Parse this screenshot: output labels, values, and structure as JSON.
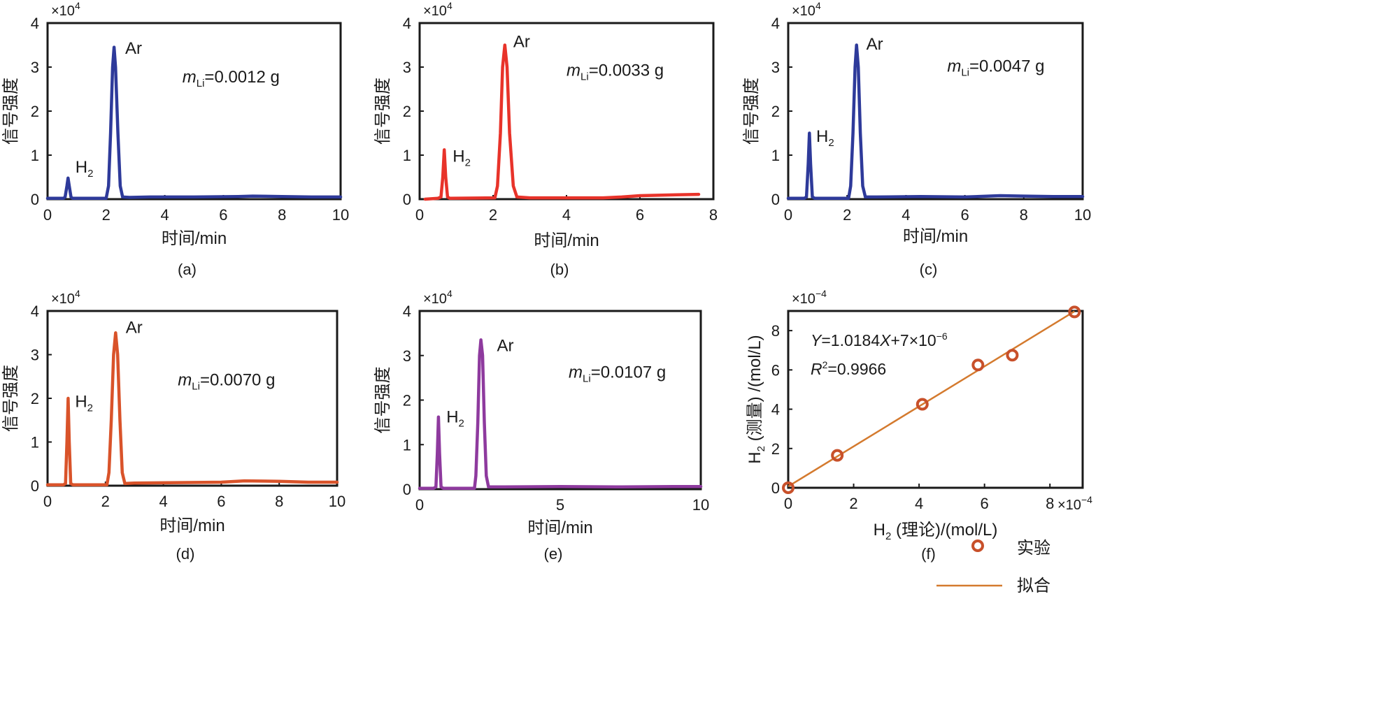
{
  "chart_data": [
    {
      "panel": "a",
      "type": "line",
      "caption": "(a)",
      "xlabel": "时间/min",
      "ylabel": "信号强度",
      "y_multiplier_base": "×10",
      "y_multiplier_exp": "4",
      "xlim": [
        0,
        10
      ],
      "ylim": [
        0,
        4
      ],
      "xticks": [
        0,
        2,
        4,
        6,
        8,
        10
      ],
      "yticks": [
        0,
        1,
        2,
        3,
        4
      ],
      "color": "#2e3a9a",
      "series": [
        {
          "name": "signal",
          "points": [
            [
              0,
              0.02
            ],
            [
              0.55,
              0.02
            ],
            [
              0.6,
              0.05
            ],
            [
              0.66,
              0.3
            ],
            [
              0.7,
              0.48
            ],
            [
              0.74,
              0.3
            ],
            [
              0.8,
              0.05
            ],
            [
              0.85,
              0.02
            ],
            [
              2.0,
              0.02
            ],
            [
              2.08,
              0.3
            ],
            [
              2.15,
              1.5
            ],
            [
              2.22,
              3.0
            ],
            [
              2.27,
              3.45
            ],
            [
              2.32,
              3.0
            ],
            [
              2.4,
              1.5
            ],
            [
              2.48,
              0.3
            ],
            [
              2.56,
              0.05
            ],
            [
              2.8,
              0.04
            ],
            [
              3.5,
              0.05
            ],
            [
              5.0,
              0.05
            ],
            [
              6.5,
              0.06
            ],
            [
              7.0,
              0.07
            ],
            [
              8.0,
              0.06
            ],
            [
              9.0,
              0.05
            ],
            [
              10,
              0.05
            ]
          ]
        }
      ],
      "annotations": [
        {
          "text": "Ar",
          "x": 2.65,
          "y": 3.3
        },
        {
          "text": "H",
          "sub": "2",
          "x": 0.95,
          "y": 0.6
        }
      ],
      "mass_label": {
        "main": "m",
        "sub": "Li",
        "value": "=0.0012 g",
        "x": 4.6,
        "y": 2.65
      }
    },
    {
      "panel": "b",
      "type": "line",
      "caption": "(b)",
      "xlabel": "时间/min",
      "ylabel": "信号强度",
      "y_multiplier_base": "×10",
      "y_multiplier_exp": "4",
      "xlim": [
        0,
        8
      ],
      "ylim": [
        0,
        4
      ],
      "xticks": [
        0,
        2,
        4,
        6,
        8
      ],
      "yticks": [
        0,
        1,
        2,
        3,
        4
      ],
      "color": "#e8332a",
      "series": [
        {
          "name": "signal",
          "points": [
            [
              0.15,
              0.0
            ],
            [
              0.5,
              0.02
            ],
            [
              0.58,
              0.05
            ],
            [
              0.63,
              0.5
            ],
            [
              0.67,
              1.12
            ],
            [
              0.71,
              0.5
            ],
            [
              0.76,
              0.05
            ],
            [
              0.82,
              0.02
            ],
            [
              2.05,
              0.03
            ],
            [
              2.12,
              0.3
            ],
            [
              2.2,
              1.5
            ],
            [
              2.26,
              3.0
            ],
            [
              2.32,
              3.5
            ],
            [
              2.38,
              3.0
            ],
            [
              2.45,
              1.5
            ],
            [
              2.55,
              0.3
            ],
            [
              2.65,
              0.05
            ],
            [
              3.0,
              0.03
            ],
            [
              4.0,
              0.03
            ],
            [
              5.0,
              0.03
            ],
            [
              5.5,
              0.05
            ],
            [
              6.0,
              0.08
            ],
            [
              7.0,
              0.1
            ],
            [
              7.6,
              0.11
            ]
          ]
        }
      ],
      "annotations": [
        {
          "text": "Ar",
          "x": 2.55,
          "y": 3.45
        },
        {
          "text": "H",
          "sub": "2",
          "x": 0.9,
          "y": 0.85
        }
      ],
      "mass_label": {
        "main": "m",
        "sub": "Li",
        "value": "=0.0033 g",
        "x": 4.0,
        "y": 2.8
      }
    },
    {
      "panel": "c",
      "type": "line",
      "caption": "(c)",
      "xlabel": "时间/min",
      "ylabel": "信号强度",
      "y_multiplier_base": "×10",
      "y_multiplier_exp": "4",
      "xlim": [
        0,
        10
      ],
      "ylim": [
        0,
        4
      ],
      "xticks": [
        0,
        2,
        4,
        6,
        8,
        10
      ],
      "yticks": [
        0,
        1,
        2,
        3,
        4
      ],
      "color": "#2e3a9a",
      "series": [
        {
          "name": "signal",
          "points": [
            [
              0,
              0.02
            ],
            [
              0.55,
              0.02
            ],
            [
              0.62,
              0.05
            ],
            [
              0.68,
              0.8
            ],
            [
              0.72,
              1.5
            ],
            [
              0.76,
              0.8
            ],
            [
              0.82,
              0.05
            ],
            [
              0.9,
              0.02
            ],
            [
              2.05,
              0.02
            ],
            [
              2.12,
              0.3
            ],
            [
              2.2,
              1.5
            ],
            [
              2.27,
              3.0
            ],
            [
              2.32,
              3.5
            ],
            [
              2.38,
              3.0
            ],
            [
              2.45,
              1.5
            ],
            [
              2.53,
              0.3
            ],
            [
              2.62,
              0.05
            ],
            [
              3.0,
              0.05
            ],
            [
              4.5,
              0.06
            ],
            [
              6.0,
              0.05
            ],
            [
              7.2,
              0.08
            ],
            [
              8.0,
              0.07
            ],
            [
              9.0,
              0.06
            ],
            [
              10,
              0.06
            ]
          ]
        }
      ],
      "annotations": [
        {
          "text": "Ar",
          "x": 2.65,
          "y": 3.4
        },
        {
          "text": "H",
          "sub": "2",
          "x": 0.95,
          "y": 1.3
        }
      ],
      "mass_label": {
        "main": "m",
        "sub": "Li",
        "value": "=0.0047 g",
        "x": 5.4,
        "y": 2.9
      }
    },
    {
      "panel": "d",
      "type": "line",
      "caption": "(d)",
      "xlabel": "时间/min",
      "ylabel": "信号强度",
      "y_multiplier_base": "×10",
      "y_multiplier_exp": "4",
      "xlim": [
        0,
        10
      ],
      "ylim": [
        0,
        4
      ],
      "xticks": [
        0,
        2,
        4,
        6,
        8,
        10
      ],
      "yticks": [
        0,
        1,
        2,
        3,
        4
      ],
      "color": "#d9532a",
      "series": [
        {
          "name": "signal",
          "points": [
            [
              0,
              0.02
            ],
            [
              0.55,
              0.02
            ],
            [
              0.62,
              0.05
            ],
            [
              0.67,
              1.0
            ],
            [
              0.71,
              2.0
            ],
            [
              0.75,
              1.0
            ],
            [
              0.8,
              0.05
            ],
            [
              0.88,
              0.02
            ],
            [
              2.05,
              0.02
            ],
            [
              2.12,
              0.3
            ],
            [
              2.2,
              1.5
            ],
            [
              2.28,
              3.0
            ],
            [
              2.35,
              3.5
            ],
            [
              2.42,
              3.0
            ],
            [
              2.5,
              1.5
            ],
            [
              2.58,
              0.3
            ],
            [
              2.67,
              0.05
            ],
            [
              3.0,
              0.06
            ],
            [
              4.5,
              0.07
            ],
            [
              6.0,
              0.08
            ],
            [
              6.8,
              0.11
            ],
            [
              8.0,
              0.1
            ],
            [
              9.0,
              0.08
            ],
            [
              10,
              0.08
            ]
          ]
        }
      ],
      "annotations": [
        {
          "text": "Ar",
          "x": 2.7,
          "y": 3.5
        },
        {
          "text": "H",
          "sub": "2",
          "x": 0.95,
          "y": 1.8
        }
      ],
      "mass_label": {
        "main": "m",
        "sub": "Li",
        "value": "=0.0070 g",
        "x": 4.5,
        "y": 2.3
      }
    },
    {
      "panel": "e",
      "type": "line",
      "caption": "(e)",
      "xlabel": "时间/min",
      "ylabel": "信号强度",
      "y_multiplier_base": "×10",
      "y_multiplier_exp": "4",
      "xlim": [
        0,
        10
      ],
      "ylim": [
        0,
        4
      ],
      "xticks": [
        0,
        5,
        10
      ],
      "yticks": [
        0,
        1,
        2,
        3,
        4
      ],
      "color": "#8e3a9e",
      "series": [
        {
          "name": "signal",
          "points": [
            [
              0,
              0.02
            ],
            [
              0.5,
              0.02
            ],
            [
              0.58,
              0.05
            ],
            [
              0.63,
              0.8
            ],
            [
              0.67,
              1.62
            ],
            [
              0.71,
              0.8
            ],
            [
              0.76,
              0.05
            ],
            [
              0.84,
              0.02
            ],
            [
              1.95,
              0.02
            ],
            [
              2.0,
              0.3
            ],
            [
              2.07,
              1.5
            ],
            [
              2.13,
              3.0
            ],
            [
              2.18,
              3.35
            ],
            [
              2.24,
              3.0
            ],
            [
              2.3,
              1.5
            ],
            [
              2.37,
              0.3
            ],
            [
              2.45,
              0.05
            ],
            [
              3.0,
              0.05
            ],
            [
              5.0,
              0.06
            ],
            [
              7.0,
              0.05
            ],
            [
              9.0,
              0.06
            ],
            [
              10,
              0.06
            ]
          ]
        }
      ],
      "annotations": [
        {
          "text": "Ar",
          "x": 2.75,
          "y": 3.1
        },
        {
          "text": "H",
          "sub": "2",
          "x": 0.95,
          "y": 1.5
        }
      ],
      "mass_label": {
        "main": "m",
        "sub": "Li",
        "value": "=0.0107 g",
        "x": 5.3,
        "y": 2.5
      }
    },
    {
      "panel": "f",
      "type": "scatter",
      "caption": "(f)",
      "xlabel_pre": "H",
      "xlabel_sub": "2",
      "xlabel_post": " (理论)/(mol/L)",
      "ylabel_pre": "H",
      "ylabel_sub": "2",
      "ylabel_post": " (测量) /(mol/L)",
      "x_multiplier_base": "×10",
      "x_multiplier_exp": "−4",
      "y_multiplier_base": "×10",
      "y_multiplier_exp": "−4",
      "xlim": [
        0,
        9
      ],
      "ylim": [
        0,
        9
      ],
      "xticks": [
        0,
        2,
        4,
        6,
        8
      ],
      "yticks": [
        0,
        2,
        4,
        6,
        8
      ],
      "color": "#c8502a",
      "points": [
        [
          0,
          0
        ],
        [
          1.5,
          1.65
        ],
        [
          4.1,
          4.25
        ],
        [
          5.8,
          6.25
        ],
        [
          6.85,
          6.75
        ],
        [
          8.75,
          8.95
        ]
      ],
      "fit": {
        "slope": 1.0184,
        "intercept": 0.07
      },
      "equation": {
        "y": "Y",
        "mid": "=1.0184",
        "x": "X",
        "tail": "+7×10",
        "exp": "−6"
      },
      "r2": {
        "r": "R",
        "sup": "2",
        "value": "=0.9966"
      },
      "legend": {
        "experiment": "实验",
        "fit": "拟合"
      }
    }
  ]
}
